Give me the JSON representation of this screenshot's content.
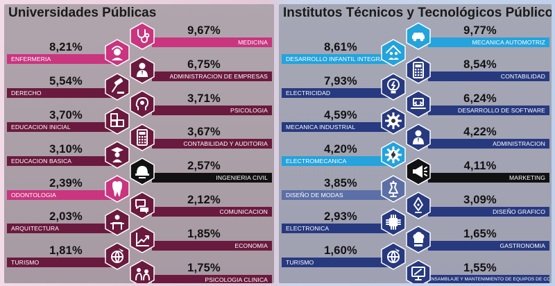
{
  "colors": {
    "magenta": "#c9357f",
    "maroon": "#6a1a3e",
    "black": "#111111",
    "cyan": "#24a3dc",
    "navy": "#27397f",
    "slate": "#5c6fa6"
  },
  "chart_data": [
    {
      "type": "bar",
      "title": "Universidades Públicas",
      "categories": [
        "MEDICINA",
        "ENFERMERIA",
        "ADMINISTRACION DE EMPRESAS",
        "DERECHO",
        "PSICOLOGIA",
        "EDUCACION INICIAL",
        "CONTABILIDAD Y AUDITORIA",
        "EDUCACION BASICA",
        "INGENIERIA CIVIL",
        "ODONTOLOGIA",
        "COMUNICACION",
        "ARQUITECTURA",
        "ECONOMIA",
        "TURISMO",
        "PSICOLOGIA CLINICA"
      ],
      "values": [
        9.67,
        8.21,
        6.75,
        5.54,
        3.71,
        3.7,
        3.67,
        3.1,
        2.57,
        2.39,
        2.12,
        2.03,
        1.85,
        1.81,
        1.75
      ],
      "items": [
        {
          "pct": "9,67%",
          "label": "MEDICINA",
          "side": "right",
          "color": "magenta",
          "icon": "stethoscope-icon"
        },
        {
          "pct": "8,21%",
          "label": "ENFERMERIA",
          "side": "left",
          "color": "magenta",
          "icon": "nurse-icon"
        },
        {
          "pct": "6,75%",
          "label": "ADMINISTRACION DE EMPRESAS",
          "side": "right",
          "color": "maroon",
          "icon": "businessman-icon"
        },
        {
          "pct": "5,54%",
          "label": "DERECHO",
          "side": "left",
          "color": "maroon",
          "icon": "gavel-icon"
        },
        {
          "pct": "3,71%",
          "label": "PSICOLOGIA",
          "side": "right",
          "color": "maroon",
          "icon": "head-gears-icon"
        },
        {
          "pct": "3,70%",
          "label": "EDUCACION INICIAL",
          "side": "left",
          "color": "maroon",
          "icon": "abc-blocks-icon"
        },
        {
          "pct": "3,67%",
          "label": "CONTABILIDAD Y AUDITORIA",
          "side": "right",
          "color": "maroon",
          "icon": "calculator-icon"
        },
        {
          "pct": "3,10%",
          "label": "EDUCACION BASICA",
          "side": "left",
          "color": "maroon",
          "icon": "teacher-icon"
        },
        {
          "pct": "2,57%",
          "label": "INGENIERIA CIVIL",
          "side": "right",
          "color": "black",
          "icon": "hard-hat-icon"
        },
        {
          "pct": "2,39%",
          "label": "ODONTOLOGIA",
          "side": "left",
          "color": "magenta",
          "icon": "tooth-icon"
        },
        {
          "pct": "2,12%",
          "label": "COMUNICACION",
          "side": "right",
          "color": "maroon",
          "icon": "speech-bubbles-icon"
        },
        {
          "pct": "2,03%",
          "label": "ARQUITECTURA",
          "side": "left",
          "color": "maroon",
          "icon": "architect-icon"
        },
        {
          "pct": "1,85%",
          "label": "ECONOMIA",
          "side": "right",
          "color": "maroon",
          "icon": "growth-chart-icon"
        },
        {
          "pct": "1,81%",
          "label": "TURISMO",
          "side": "left",
          "color": "maroon",
          "icon": "globe-plane-icon"
        },
        {
          "pct": "1,75%",
          "label": "PSICOLOGIA CLINICA",
          "side": "right",
          "color": "maroon",
          "icon": "therapy-session-icon"
        }
      ]
    },
    {
      "type": "bar",
      "title": "Institutos Técnicos y Tecnológicos Públicos",
      "categories": [
        "MECANICA AUTOMOTRIZ",
        "DESARROLLO INFANTIL INTEGRAL",
        "CONTABILIDAD",
        "ELECTRICIDAD",
        "DESARROLLO DE SOFTWARE",
        "MECANICA INDUSTRIAL",
        "ADMINISTRACION",
        "ELECTROMECANICA",
        "MARKETING",
        "DISEÑO DE MODAS",
        "DISEÑO GRAFICO",
        "ELECTRONICA",
        "GASTRONOMIA",
        "TURISMO",
        "ENSAMBLAJE Y MANTENIMIENTO DE EQUIPOS DE COMPUTO"
      ],
      "values": [
        9.77,
        8.61,
        8.54,
        7.93,
        6.24,
        4.59,
        4.22,
        4.2,
        4.11,
        3.85,
        3.09,
        2.93,
        1.65,
        1.6,
        1.55
      ],
      "items": [
        {
          "pct": "9,77%",
          "label": "MECANICA AUTOMOTRIZ",
          "side": "right",
          "color": "cyan",
          "icon": "car-wrench-icon"
        },
        {
          "pct": "8,61%",
          "label": "DESARROLLO INFANTIL INTEGRAL",
          "side": "left",
          "color": "cyan",
          "icon": "family-house-icon"
        },
        {
          "pct": "8,54%",
          "label": "CONTABILIDAD",
          "side": "right",
          "color": "navy",
          "icon": "calculator-icon"
        },
        {
          "pct": "7,93%",
          "label": "ELECTRICIDAD",
          "side": "left",
          "color": "navy",
          "icon": "lightbulb-icon"
        },
        {
          "pct": "6,24%",
          "label": "DESARROLLO DE SOFTWARE",
          "side": "right",
          "color": "navy",
          "icon": "laptop-icon"
        },
        {
          "pct": "4,59%",
          "label": "MECANICA INDUSTRIAL",
          "side": "left",
          "color": "navy",
          "icon": "gear-icon"
        },
        {
          "pct": "4,22%",
          "label": "ADMINISTRACION",
          "side": "right",
          "color": "navy",
          "icon": "manager-icon"
        },
        {
          "pct": "4,20%",
          "label": "ELECTROMECANICA",
          "side": "left",
          "color": "cyan",
          "icon": "gear-bolt-icon"
        },
        {
          "pct": "4,11%",
          "label": "MARKETING",
          "side": "right",
          "color": "black",
          "icon": "megaphone-icon"
        },
        {
          "pct": "3,85%",
          "label": "DISEÑO DE MODAS",
          "side": "left",
          "color": "slate",
          "icon": "dress-form-icon"
        },
        {
          "pct": "3,09%",
          "label": "DISEÑO GRAFICO",
          "side": "right",
          "color": "navy",
          "icon": "pen-tool-icon"
        },
        {
          "pct": "2,93%",
          "label": "ELECTRONICA",
          "side": "left",
          "color": "navy",
          "icon": "chip-icon"
        },
        {
          "pct": "1,65%",
          "label": "GASTRONOMIA",
          "side": "right",
          "color": "navy",
          "icon": "chef-hat-icon"
        },
        {
          "pct": "1,60%",
          "label": "TURISMO",
          "side": "left",
          "color": "navy",
          "icon": "globe-plane-icon"
        },
        {
          "pct": "1,55%",
          "label": "ENSAMBLAJE Y MANTENIMIENTO DE EQUIPOS DE COMPUTO",
          "side": "right",
          "color": "navy",
          "icon": "computer-repair-icon"
        }
      ]
    }
  ]
}
